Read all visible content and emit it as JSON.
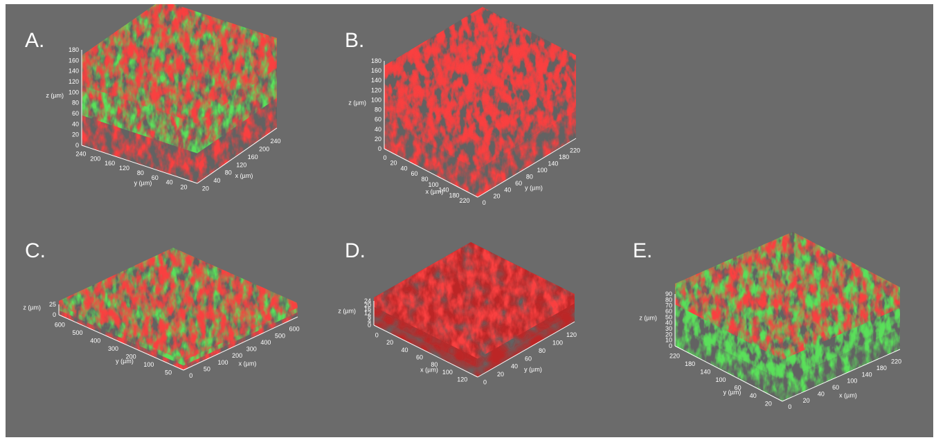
{
  "panels": [
    {
      "label": "A.",
      "z_axis": {
        "title": "z (µm)",
        "ticks": [
          0,
          20,
          40,
          60,
          80,
          100,
          120,
          140,
          160,
          180
        ]
      },
      "left_axis": {
        "title": "y (µm)",
        "ticks": [
          240,
          200,
          160,
          120,
          80,
          60,
          40,
          20
        ]
      },
      "right_axis": {
        "title": "x (µm)",
        "ticks": [
          20,
          40,
          80,
          120,
          160,
          200,
          240
        ]
      }
    },
    {
      "label": "B.",
      "z_axis": {
        "title": "z (µm)",
        "ticks": [
          0,
          20,
          40,
          60,
          80,
          100,
          120,
          140,
          160,
          180
        ]
      },
      "left_axis": {
        "title": "x (µm)",
        "ticks": [
          0,
          20,
          40,
          60,
          80,
          100,
          140,
          180,
          220
        ]
      },
      "right_axis": {
        "title": "y (µm)",
        "ticks": [
          0,
          20,
          40,
          60,
          80,
          100,
          140,
          180,
          220
        ]
      }
    },
    {
      "label": "C.",
      "z_axis": {
        "title": "z (µm)",
        "ticks": [
          0,
          25
        ]
      },
      "left_axis": {
        "title": "y (µm)",
        "ticks": [
          600,
          500,
          400,
          300,
          200,
          100,
          50
        ]
      },
      "right_axis": {
        "title": "x (µm)",
        "ticks": [
          0,
          50,
          100,
          200,
          300,
          400,
          500,
          600
        ]
      }
    },
    {
      "label": "D.",
      "z_axis": {
        "title": "z (µm)",
        "ticks": [
          0,
          4,
          8,
          12,
          16,
          20,
          24
        ]
      },
      "left_axis": {
        "title": "x (µm)",
        "ticks": [
          0,
          20,
          40,
          60,
          80,
          100,
          120
        ]
      },
      "right_axis": {
        "title": "y (µm)",
        "ticks": [
          0,
          20,
          40,
          60,
          80,
          100,
          120
        ]
      }
    },
    {
      "label": "E.",
      "z_axis": {
        "title": "z (µm)",
        "ticks": [
          0,
          10,
          20,
          30,
          40,
          50,
          60,
          70,
          80,
          90
        ]
      },
      "left_axis": {
        "title": "y (µm)",
        "ticks": [
          220,
          180,
          140,
          100,
          60,
          40,
          20
        ]
      },
      "right_axis": {
        "title": "x (µm)",
        "ticks": [
          0,
          20,
          40,
          60,
          100,
          140,
          180,
          220
        ]
      }
    }
  ]
}
